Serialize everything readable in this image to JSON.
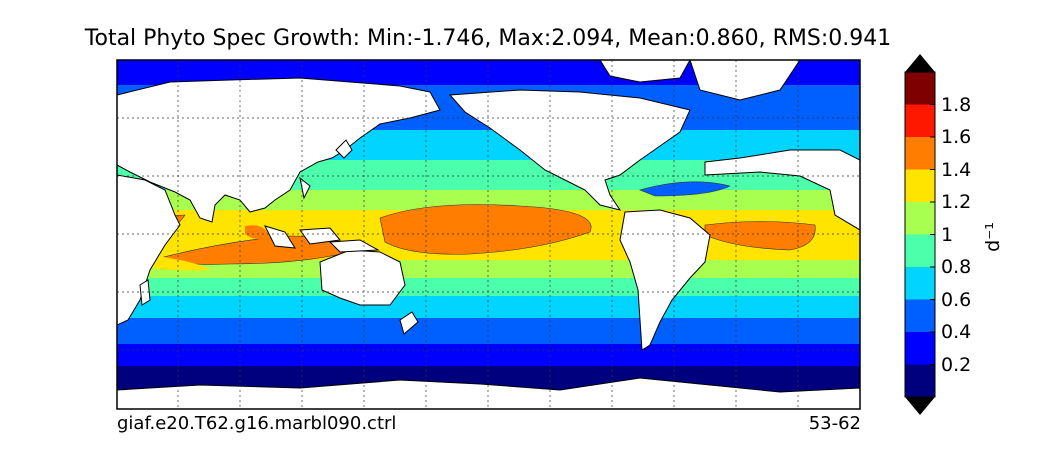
{
  "title": "Total Phyto Spec Growth: Min:-1.746, Max:2.094, Mean:0.860, RMS:0.941",
  "footer": {
    "case_name": "giaf.e20.T62.g16.marbl090.ctrl",
    "years": "53-62"
  },
  "colorbar": {
    "unit": "d⁻¹",
    "levels": [
      "0.2",
      "0.4",
      "0.6",
      "0.8",
      "1",
      "1.2",
      "1.4",
      "1.6",
      "1.8"
    ],
    "colors": [
      "#00007f",
      "#0000ff",
      "#0060ff",
      "#00d4ff",
      "#4cffaa",
      "#a8ff4f",
      "#ffe400",
      "#ff7d00",
      "#ff1800",
      "#7f0000"
    ],
    "extend": "both"
  },
  "map_data": {
    "type": "filled-contour-map",
    "projection": "equirectangular",
    "grid": true,
    "land_color": "#ffffff"
  }
}
